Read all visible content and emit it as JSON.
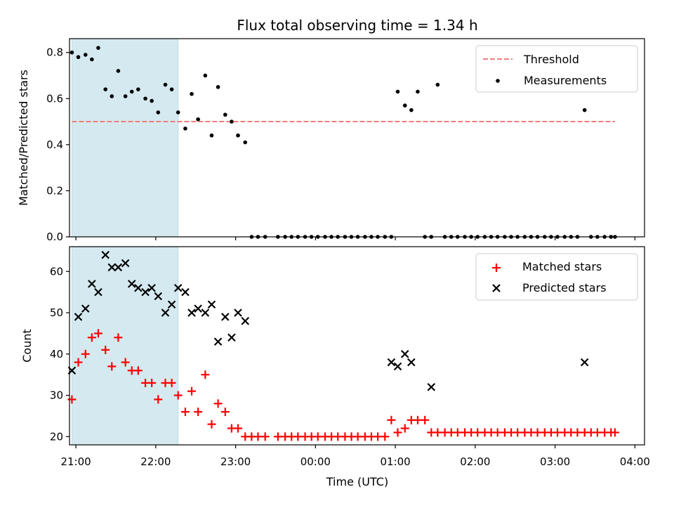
{
  "chart_data": [
    {
      "type": "scatter",
      "title": "Flux total observing time = 1.34 h",
      "xlabel": "",
      "ylabel": "Matched/Predicted stars",
      "x_unit": "hours since 20:00 UTC (x axis shows clock time)",
      "xlim": [
        0.92,
        8.12
      ],
      "ylim": [
        0.0,
        0.86
      ],
      "yticks": [
        "0.0",
        "0.2",
        "0.4",
        "0.6",
        "0.8"
      ],
      "shaded_interval": [
        0.95,
        2.28
      ],
      "shade_color": "#d4eaf0",
      "threshold": {
        "name": "Threshold",
        "value": 0.5,
        "x": [
          0.95,
          7.75
        ],
        "color": "#f47c7c"
      },
      "legend": {
        "placement": "top-right",
        "entries": [
          "Threshold",
          "Measurements"
        ]
      },
      "series": [
        {
          "name": "Measurements",
          "color": "#000000",
          "x": [
            0.95,
            1.03,
            1.12,
            1.2,
            1.28,
            1.37,
            1.45,
            1.53,
            1.62,
            1.7,
            1.78,
            1.87,
            1.95,
            2.03,
            2.12,
            2.2,
            2.28,
            2.37,
            2.45,
            2.53,
            2.62,
            2.7,
            2.78,
            2.87,
            2.95,
            3.03,
            3.12,
            3.2,
            3.28,
            3.37,
            3.53,
            3.62,
            3.7,
            3.78,
            3.87,
            3.95,
            4.03,
            4.12,
            4.2,
            4.28,
            4.37,
            4.45,
            4.53,
            4.62,
            4.7,
            4.78,
            4.87,
            4.95,
            5.03,
            5.12,
            5.2,
            5.28,
            5.37,
            5.45,
            5.53,
            5.62,
            5.7,
            5.78,
            5.87,
            5.95,
            6.03,
            6.12,
            6.2,
            6.28,
            6.37,
            6.45,
            6.53,
            6.62,
            6.7,
            6.78,
            6.87,
            6.95,
            7.03,
            7.12,
            7.2,
            7.28,
            7.37,
            7.45,
            7.53,
            7.62,
            7.7,
            7.75
          ],
          "y": [
            0.8,
            0.78,
            0.79,
            0.77,
            0.82,
            0.64,
            0.61,
            0.72,
            0.61,
            0.63,
            0.64,
            0.6,
            0.59,
            0.54,
            0.66,
            0.64,
            0.54,
            0.47,
            0.62,
            0.51,
            0.7,
            0.44,
            0.65,
            0.53,
            0.5,
            0.44,
            0.41,
            0,
            0,
            0,
            0,
            0,
            0,
            0,
            0,
            0,
            0,
            0,
            0,
            0,
            0,
            0,
            0,
            0,
            0,
            0,
            0,
            0,
            0.63,
            0.57,
            0.55,
            0.63,
            0,
            0,
            0.66,
            0,
            0,
            0,
            0,
            0,
            0,
            0,
            0,
            0,
            0,
            0,
            0,
            0,
            0,
            0,
            0,
            0,
            0,
            0,
            0,
            0,
            0.55,
            0,
            0,
            0,
            0,
            0
          ]
        }
      ]
    },
    {
      "type": "scatter",
      "title": "",
      "xlabel": "Time (UTC)",
      "ylabel": "Count",
      "xlim": [
        0.92,
        8.12
      ],
      "ylim": [
        18,
        66
      ],
      "yticks": [
        "20",
        "30",
        "40",
        "50",
        "60"
      ],
      "xticks": [
        "21:00",
        "22:00",
        "23:00",
        "00:00",
        "01:00",
        "02:00",
        "03:00",
        "04:00"
      ],
      "shaded_interval": [
        0.95,
        2.28
      ],
      "legend": {
        "placement": "top-right",
        "entries": [
          "Matched stars",
          "Predicted stars"
        ]
      },
      "series": [
        {
          "name": "Matched stars",
          "marker": "plus",
          "color": "#ff0000",
          "x": [
            0.95,
            1.03,
            1.12,
            1.2,
            1.28,
            1.37,
            1.45,
            1.53,
            1.62,
            1.7,
            1.78,
            1.87,
            1.95,
            2.03,
            2.12,
            2.2,
            2.28,
            2.37,
            2.45,
            2.53,
            2.62,
            2.7,
            2.78,
            2.87,
            2.95,
            3.03,
            3.12,
            3.2,
            3.28,
            3.37,
            3.53,
            3.62,
            3.7,
            3.78,
            3.87,
            3.95,
            4.03,
            4.12,
            4.2,
            4.28,
            4.37,
            4.45,
            4.53,
            4.62,
            4.7,
            4.78,
            4.87,
            4.95,
            5.03,
            5.12,
            5.2,
            5.28,
            5.37,
            5.45,
            5.53,
            5.62,
            5.7,
            5.78,
            5.87,
            5.95,
            6.03,
            6.12,
            6.2,
            6.28,
            6.37,
            6.45,
            6.53,
            6.62,
            6.7,
            6.78,
            6.87,
            6.95,
            7.03,
            7.12,
            7.2,
            7.28,
            7.37,
            7.45,
            7.53,
            7.62,
            7.7,
            7.75
          ],
          "y": [
            29,
            38,
            40,
            44,
            45,
            41,
            37,
            44,
            38,
            36,
            36,
            33,
            33,
            29,
            33,
            33,
            30,
            26,
            31,
            26,
            35,
            23,
            28,
            26,
            22,
            22,
            20,
            20,
            20,
            20,
            20,
            20,
            20,
            20,
            20,
            20,
            20,
            20,
            20,
            20,
            20,
            20,
            20,
            20,
            20,
            20,
            20,
            24,
            21,
            22,
            24,
            24,
            24,
            21,
            21,
            21,
            21,
            21,
            21,
            21,
            21,
            21,
            21,
            21,
            21,
            21,
            21,
            21,
            21,
            21,
            21,
            21,
            21,
            21,
            21,
            21,
            21,
            21,
            21,
            21,
            21,
            21
          ]
        },
        {
          "name": "Predicted stars",
          "marker": "x",
          "color": "#000000",
          "x": [
            0.95,
            1.03,
            1.12,
            1.2,
            1.28,
            1.37,
            1.45,
            1.53,
            1.62,
            1.7,
            1.78,
            1.87,
            1.95,
            2.03,
            2.12,
            2.2,
            2.28,
            2.37,
            2.45,
            2.53,
            2.62,
            2.7,
            2.78,
            2.87,
            2.95,
            3.03,
            3.12,
            4.95,
            5.03,
            5.12,
            5.2,
            5.45,
            7.37
          ],
          "y": [
            36,
            49,
            51,
            57,
            55,
            64,
            61,
            61,
            62,
            57,
            56,
            55,
            56,
            54,
            50,
            52,
            56,
            55,
            50,
            51,
            50,
            52,
            43,
            49,
            44,
            50,
            48,
            38,
            37,
            40,
            38,
            32,
            38
          ]
        }
      ]
    }
  ]
}
